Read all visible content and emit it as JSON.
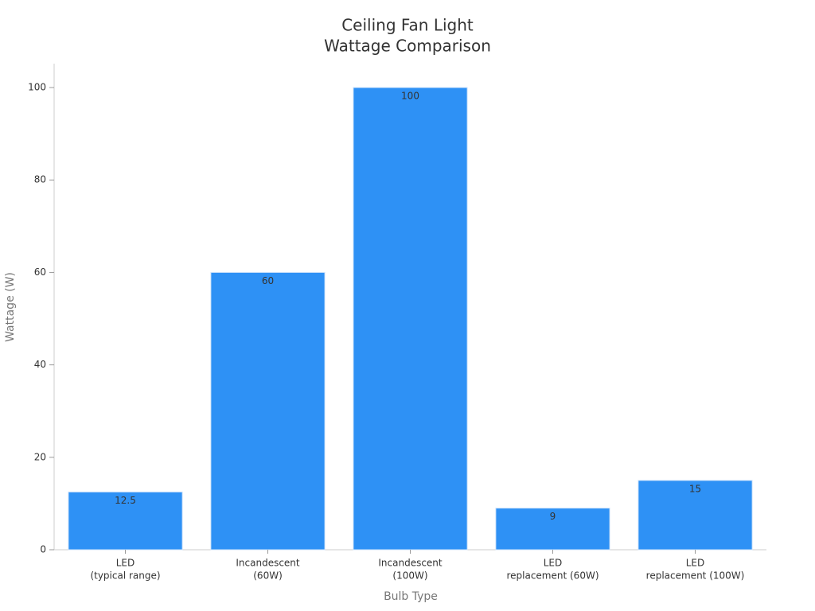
{
  "chart_data": {
    "type": "bar",
    "title": [
      "Ceiling Fan Light",
      "Wattage Comparison"
    ],
    "x_label": "Bulb Type",
    "y_label": "Wattage (W)",
    "categories": [
      [
        "LED",
        "(typical range)"
      ],
      [
        "Incandescent",
        "(60W)"
      ],
      [
        "Incandescent",
        "(100W)"
      ],
      [
        "LED",
        "replacement (60W)"
      ],
      [
        "LED",
        "replacement (100W)"
      ]
    ],
    "values": [
      12.5,
      60,
      100,
      9,
      15
    ],
    "color": "#2e91f5",
    "ylim": [
      0,
      105
    ],
    "yticks": [
      0,
      20,
      40,
      60,
      80,
      100
    ],
    "grid": false
  }
}
